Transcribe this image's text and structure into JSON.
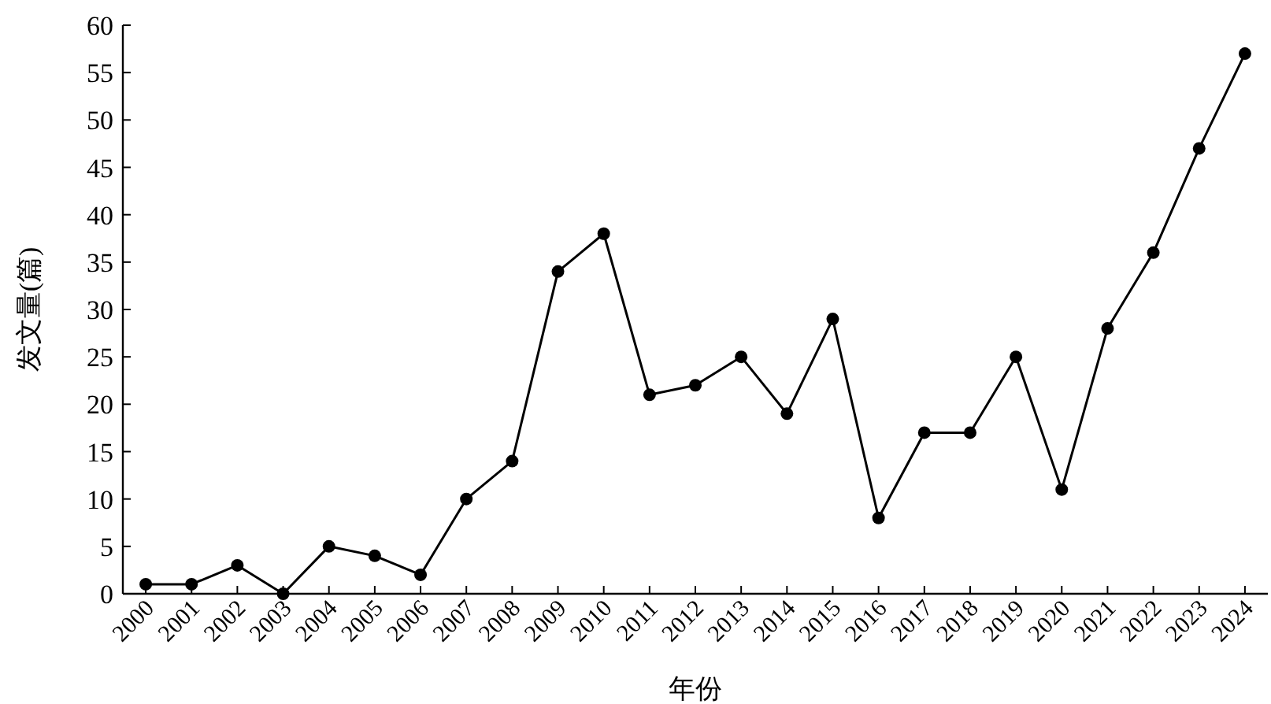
{
  "chart_data": {
    "type": "line",
    "xlabel": "年份",
    "ylabel": "发文量(篇)",
    "categories": [
      "2000",
      "2001",
      "2002",
      "2003",
      "2004",
      "2005",
      "2006",
      "2007",
      "2008",
      "2009",
      "2010",
      "2011",
      "2012",
      "2013",
      "2014",
      "2015",
      "2016",
      "2017",
      "2018",
      "2019",
      "2020",
      "2021",
      "2022",
      "2023",
      "2024"
    ],
    "values": [
      1,
      1,
      3,
      0,
      5,
      4,
      2,
      10,
      14,
      34,
      38,
      21,
      22,
      25,
      19,
      29,
      8,
      17,
      17,
      25,
      11,
      28,
      36,
      47,
      57
    ],
    "color": "#000000",
    "ylim": [
      0,
      60
    ],
    "yticks": [
      0,
      5,
      10,
      15,
      20,
      25,
      30,
      35,
      40,
      45,
      50,
      55,
      60
    ],
    "marker": "circle",
    "line_style": "solid"
  }
}
